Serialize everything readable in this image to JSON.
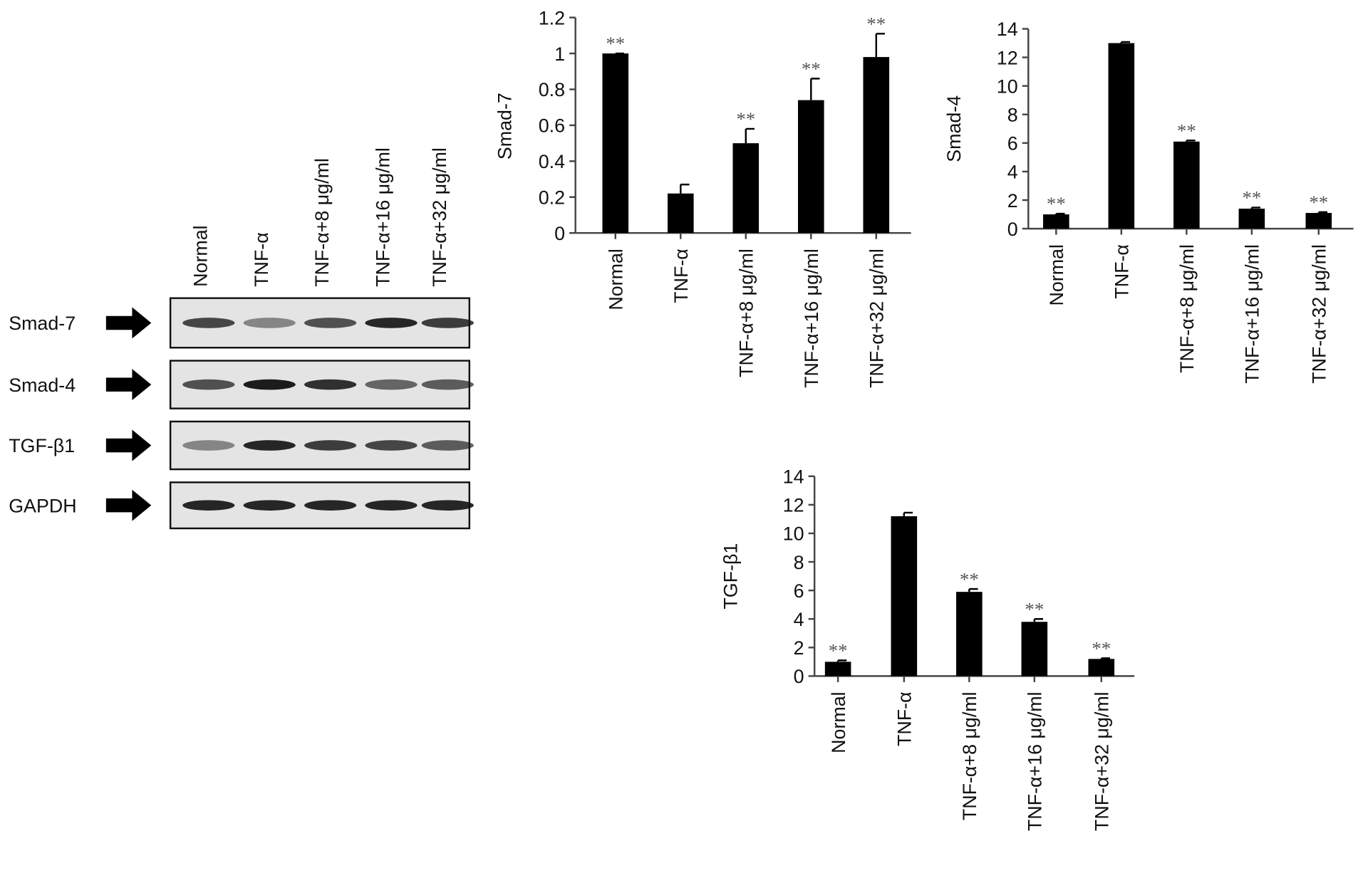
{
  "blot": {
    "lanes": [
      "Normal",
      "TNF-α",
      "TNF-α+8 μg/ml",
      "TNF-α+16 μg/ml",
      "TNF-α+32 μg/ml"
    ],
    "rows": [
      "Smad-7",
      "Smad-4",
      "TGF-β1",
      "GAPDH"
    ]
  },
  "chart_data": [
    {
      "type": "bar",
      "ylabel": "Smad-7",
      "categories": [
        "Normal",
        "TNF-α",
        "TNF-α+8 μg/ml",
        "TNF-α+16 μg/ml",
        "TNF-α+32 μg/ml"
      ],
      "values": [
        1.0,
        0.22,
        0.5,
        0.74,
        0.98
      ],
      "error": [
        0,
        0.05,
        0.08,
        0.12,
        0.13
      ],
      "annotations": [
        "**",
        null,
        "**",
        "**",
        "**"
      ],
      "ylim": [
        0,
        1.2
      ],
      "yticks": [
        0,
        0.2,
        0.4,
        0.6,
        0.8,
        1,
        1.2
      ],
      "color": "#000000"
    },
    {
      "type": "bar",
      "ylabel": "Smad-4",
      "categories": [
        "Normal",
        "TNF-α",
        "TNF-α+8 μg/ml",
        "TNF-α+16 μg/ml",
        "TNF-α+32 μg/ml"
      ],
      "values": [
        1.0,
        13.0,
        6.1,
        1.4,
        1.1
      ],
      "error": [
        0.05,
        0.08,
        0.08,
        0.08,
        0.06
      ],
      "annotations": [
        "**",
        null,
        "**",
        "**",
        "**"
      ],
      "ylim": [
        0,
        14
      ],
      "yticks": [
        0,
        2,
        4,
        6,
        8,
        10,
        12,
        14
      ],
      "color": "#000000"
    },
    {
      "type": "bar",
      "ylabel": "TGF-β1",
      "categories": [
        "Normal",
        "TNF-α",
        "TNF-α+8 μg/ml",
        "TNF-α+16 μg/ml",
        "TNF-α+32 μg/ml"
      ],
      "values": [
        1.0,
        11.2,
        5.9,
        3.8,
        1.2
      ],
      "error": [
        0.1,
        0.25,
        0.2,
        0.2,
        0.05
      ],
      "annotations": [
        "**",
        null,
        "**",
        "**",
        "**"
      ],
      "ylim": [
        0,
        14
      ],
      "yticks": [
        0,
        2,
        4,
        6,
        8,
        10,
        12,
        14
      ],
      "color": "#000000"
    }
  ]
}
